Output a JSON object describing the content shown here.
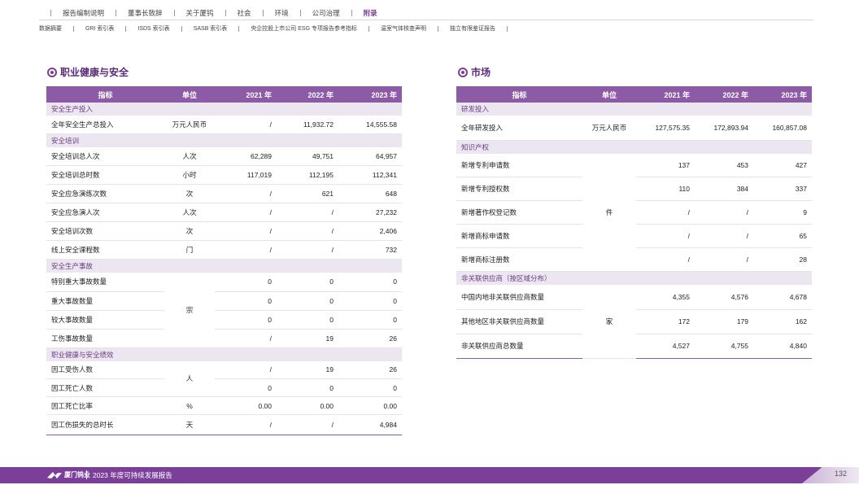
{
  "nav": {
    "main": [
      "报告编制说明",
      "董事长致辞",
      "关于厦钨",
      "社会",
      "环境",
      "公司治理",
      "附录"
    ],
    "active_index": 6,
    "sub": [
      "数据摘要",
      "GRI 索引表",
      "ISDS 索引表",
      "SASB 索引表",
      "央企控股上市公司 ESG 专项报告参考指标",
      "温室气体核查声明",
      "独立有限鉴证报告"
    ]
  },
  "left": {
    "title": "职业健康与安全",
    "headers": [
      "指标",
      "单位",
      "2021 年",
      "2022 年",
      "2023 年"
    ],
    "rows": [
      {
        "cat": "安全生产投入"
      },
      {
        "name": "全年安全生产总投入",
        "unit": "万元人民币",
        "v": [
          "/",
          "11,932.72",
          "14,555.58"
        ],
        "h": 22
      },
      {
        "cat": "安全培训"
      },
      {
        "name": "安全培训总人次",
        "unit": "人次",
        "v": [
          "62,289",
          "49,751",
          "64,957"
        ],
        "h": 23
      },
      {
        "name": "安全培训总时数",
        "unit": "小时",
        "v": [
          "117,019",
          "112,195",
          "112,341"
        ],
        "h": 23
      },
      {
        "name": "安全应急演练次数",
        "unit": "次",
        "v": [
          "/",
          "621",
          "648"
        ],
        "h": 23
      },
      {
        "name": "安全应急演人次",
        "unit": "人次",
        "v": [
          "/",
          "/",
          "27,232"
        ],
        "h": 23
      },
      {
        "name": "安全培训次数",
        "unit": "次",
        "v": [
          "/",
          "/",
          "2,406"
        ],
        "h": 23
      },
      {
        "name": "线上安全课程数",
        "unit": "门",
        "v": [
          "/",
          "/",
          "732"
        ],
        "h": 23
      },
      {
        "cat": "安全生产事故"
      },
      {
        "name": "特别重大事故数量",
        "unit": "宗",
        "span": 4,
        "v": [
          "0",
          "0",
          "0"
        ],
        "h": 23
      },
      {
        "name": "重大事故数量",
        "v": [
          "0",
          "0",
          "0"
        ],
        "h": 23
      },
      {
        "name": "较大事故数量",
        "v": [
          "0",
          "0",
          "0"
        ],
        "h": 23
      },
      {
        "name": "工伤事故数量",
        "v": [
          "/",
          "19",
          "26"
        ],
        "h": 23
      },
      {
        "cat": "职业健康与安全绩效"
      },
      {
        "name": "因工受伤人数",
        "unit": "人",
        "span": 2,
        "v": [
          "/",
          "19",
          "26"
        ],
        "h": 22
      },
      {
        "name": "因工死亡人数",
        "v": [
          "0",
          "0",
          "0"
        ],
        "h": 22
      },
      {
        "name": "因工死亡比率",
        "unit": "%",
        "v": [
          "0.00",
          "0.00",
          "0.00"
        ],
        "h": 22
      },
      {
        "name": "因工伤损失的总时长",
        "unit": "天",
        "v": [
          "/",
          "/",
          "4,984"
        ],
        "h": 25
      }
    ]
  },
  "right": {
    "title": "市场",
    "headers": [
      "指标",
      "单位",
      "2021 年",
      "2022 年",
      "2023 年"
    ],
    "rows": [
      {
        "cat": "研发投入"
      },
      {
        "name": "全年研发投入",
        "unit": "万元人民币",
        "v": [
          "127,575.35",
          "172,893.94",
          "160,857.08"
        ],
        "h": 30
      },
      {
        "cat": "知识产权"
      },
      {
        "name": "新增专利申请数",
        "unit": "件",
        "span": 5,
        "v": [
          "137",
          "453",
          "427"
        ],
        "h": 29
      },
      {
        "name": "新增专利授权数",
        "v": [
          "110",
          "384",
          "337"
        ],
        "h": 29
      },
      {
        "name": "新增著作权登记数",
        "v": [
          "/",
          "/",
          "9"
        ],
        "h": 29
      },
      {
        "name": "新增商标申请数",
        "v": [
          "/",
          "/",
          "65"
        ],
        "h": 29
      },
      {
        "name": "新增商标注册数",
        "v": [
          "/",
          "/",
          "28"
        ],
        "h": 29
      },
      {
        "cat": "非关联供应商（按区域分布）"
      },
      {
        "name": "中国内地非关联供应商数量",
        "unit": "家",
        "span": 3,
        "v": [
          "4,355",
          "4,576",
          "4,678"
        ],
        "h": 30
      },
      {
        "name": "其他地区非关联供应商数量",
        "v": [
          "172",
          "179",
          "162"
        ],
        "h": 30
      },
      {
        "name": "非关联供应商总数量",
        "v": [
          "4,527",
          "4,755",
          "4,840"
        ],
        "h": 30
      }
    ]
  },
  "footer": {
    "logo_text": "厦门钨业",
    "report_title": "2023 年度可持续发展报告",
    "page": "132"
  },
  "colors": {
    "accent": "#7b3f99",
    "header_bg": "#8d5aa6",
    "category_bg": "#ece6f0"
  }
}
